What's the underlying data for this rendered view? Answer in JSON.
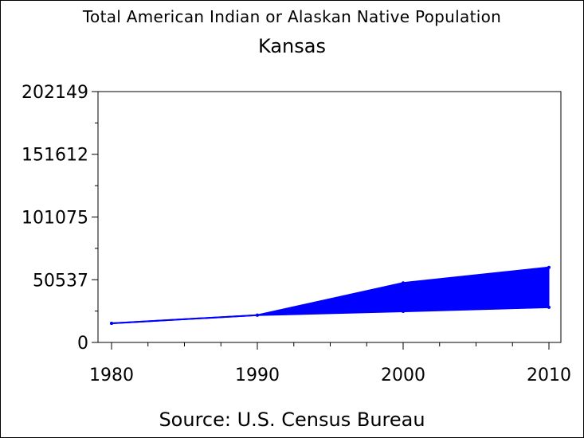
{
  "chart_data": {
    "type": "area",
    "title": "Total American Indian or Alaskan Native Population",
    "subtitle": "Kansas",
    "source": "Source: U.S. Census Bureau",
    "xlabel": "",
    "ylabel": "",
    "x": [
      1980,
      1990,
      2000,
      2010
    ],
    "x_tick_labels": [
      "1980",
      "1990",
      "2000",
      "2010"
    ],
    "xlim": [
      1980,
      2010
    ],
    "ylim": [
      0,
      202149
    ],
    "y_ticks": [
      0,
      50537,
      101075,
      151612,
      202149
    ],
    "y_tick_labels": [
      "0",
      "50537",
      "101075",
      "151612",
      "202149"
    ],
    "series": [
      {
        "values": [
          15400,
          22000,
          48000,
          60500
        ]
      },
      {
        "values": [
          15400,
          22000,
          25000,
          28300
        ]
      }
    ],
    "fill_color": "#0000ff",
    "grid": false,
    "legend": "none"
  }
}
